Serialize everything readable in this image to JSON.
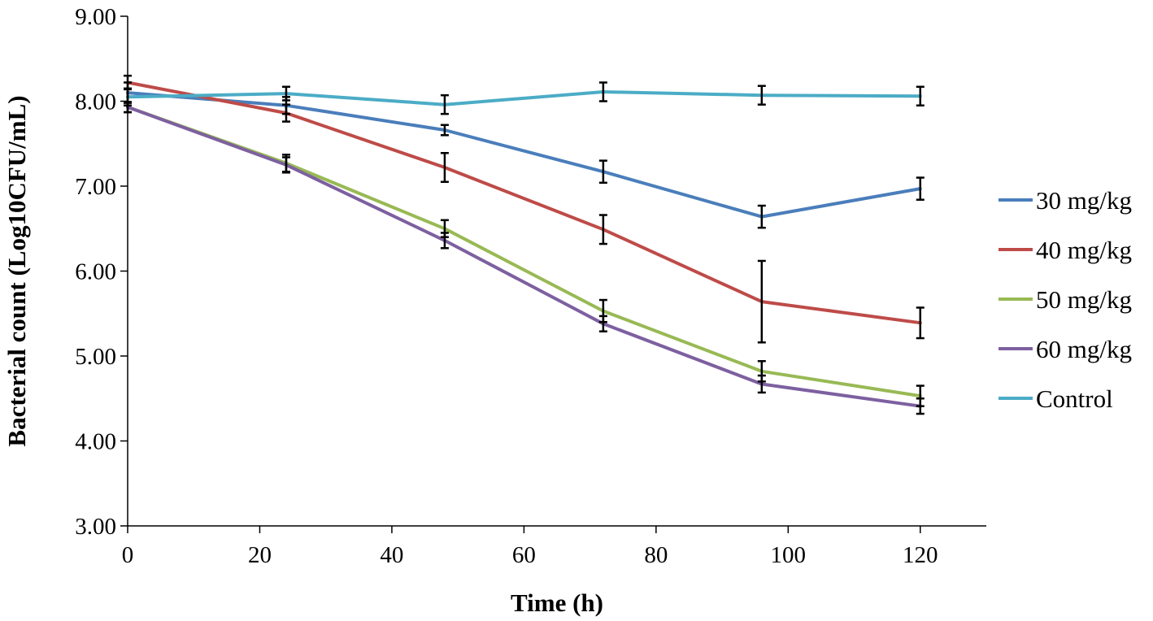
{
  "chart_data": {
    "type": "line",
    "title": "",
    "xlabel": "Time (h)",
    "ylabel": "Bacterial count (Log10CFU/mL)",
    "xlim": [
      0,
      130
    ],
    "ylim": [
      3,
      9
    ],
    "x_ticks": [
      0,
      20,
      40,
      60,
      80,
      100,
      120
    ],
    "x_tick_labels": [
      "0",
      "20",
      "40",
      "60",
      "80",
      "100",
      "120"
    ],
    "y_ticks": [
      3,
      4,
      5,
      6,
      7,
      8,
      9
    ],
    "y_tick_labels": [
      "3.00",
      "4.00",
      "5.00",
      "6.00",
      "7.00",
      "8.00",
      "9.00"
    ],
    "x": [
      0,
      24,
      48,
      72,
      96,
      120
    ],
    "grid": false,
    "legend_position": "right",
    "series": [
      {
        "name": "30 mg/kg",
        "color": "#4A7EBB",
        "values": [
          8.1,
          7.95,
          7.66,
          7.17,
          6.64,
          6.97
        ],
        "errors": [
          0.12,
          0.1,
          0.06,
          0.13,
          0.13,
          0.13
        ]
      },
      {
        "name": "40 mg/kg",
        "color": "#BE4B48",
        "values": [
          8.22,
          7.86,
          7.22,
          6.49,
          5.64,
          5.39
        ],
        "errors": [
          0.08,
          0.1,
          0.17,
          0.17,
          0.48,
          0.18
        ]
      },
      {
        "name": "50 mg/kg",
        "color": "#98B954",
        "values": [
          7.93,
          7.27,
          6.5,
          5.53,
          4.82,
          4.53
        ],
        "errors": [
          0.06,
          0.1,
          0.1,
          0.13,
          0.12,
          0.12
        ]
      },
      {
        "name": "60 mg/kg",
        "color": "#7D60A0",
        "values": [
          7.93,
          7.25,
          6.36,
          5.38,
          4.67,
          4.41
        ],
        "errors": [
          0.06,
          0.09,
          0.09,
          0.09,
          0.1,
          0.09
        ]
      },
      {
        "name": "Control",
        "color": "#4BACC6",
        "values": [
          8.05,
          8.09,
          7.96,
          8.11,
          8.07,
          8.06
        ],
        "errors": [
          0.1,
          0.08,
          0.11,
          0.11,
          0.11,
          0.11
        ]
      }
    ]
  }
}
